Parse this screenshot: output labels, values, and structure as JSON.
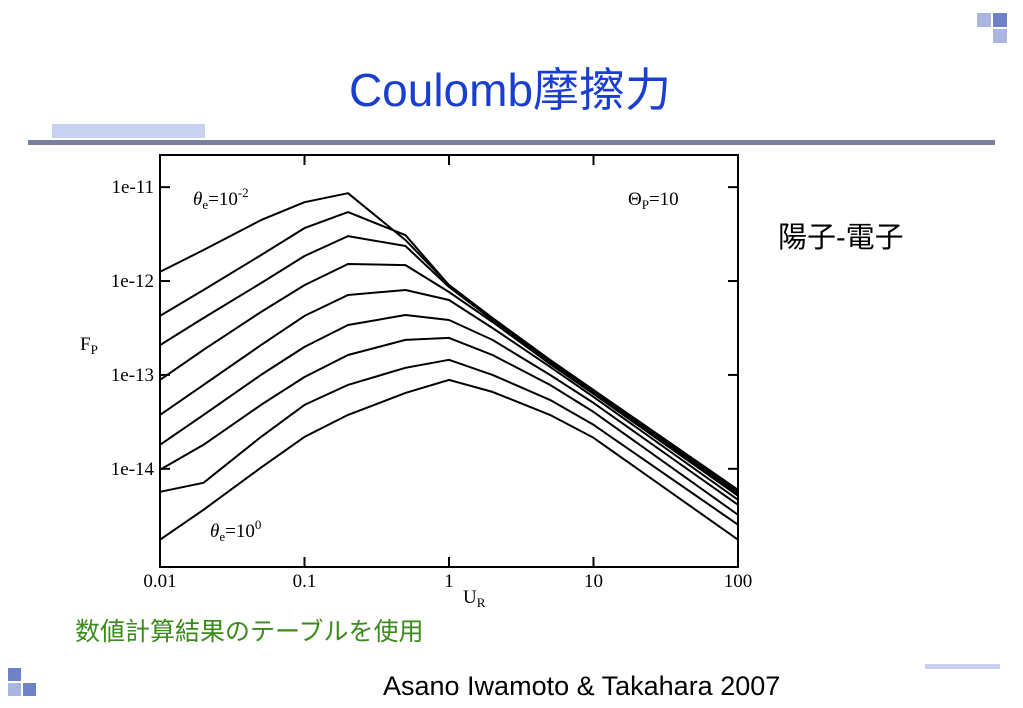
{
  "slide": {
    "title": "Coulomb摩擦力",
    "side_label": "陽子-電子",
    "note": "数値計算結果のテーブルを使用",
    "citation": "Asano Iwamoto & Takahara 2007"
  },
  "chart_data": {
    "type": "line",
    "x_label": {
      "text": "U",
      "sub": "R"
    },
    "y_label": {
      "text": "F",
      "sub": "P"
    },
    "annotations": [
      {
        "symbol": "θ",
        "sub": "e",
        "text": "=10",
        "sup": "-2"
      },
      {
        "symbol": "Θ",
        "sub": "P",
        "text": "=10"
      },
      {
        "symbol": "θ",
        "sub": "e",
        "text": "=10",
        "sup": "0"
      }
    ],
    "log_x": true,
    "log_y": true,
    "xlim": [
      0.01,
      100
    ],
    "ylim": [
      9e-16,
      2.2e-11
    ],
    "xticks": [
      0.01,
      0.1,
      1,
      10,
      100
    ],
    "yticks": [
      {
        "value": 1e-11,
        "label": "1e-11"
      },
      {
        "value": 1e-12,
        "label": "1e-12"
      },
      {
        "value": 1e-13,
        "label": "1e-13"
      },
      {
        "value": 1e-14,
        "label": "1e-14"
      }
    ],
    "x": [
      0.01,
      0.02,
      0.05,
      0.1,
      0.2,
      0.5,
      1,
      2,
      5,
      10,
      100
    ],
    "series": [
      {
        "color": "#000000",
        "values": [
          1.25e-12,
          2.14e-12,
          4.46e-12,
          6.92e-12,
          8.63e-12,
          2.73e-12,
          9.06e-13,
          4.04e-13,
          1.45e-13,
          6.92e-14,
          5.98e-15
        ]
      },
      {
        "color": "#000000",
        "values": [
          4.25e-13,
          8.02e-13,
          1.89e-12,
          3.66e-12,
          5.42e-12,
          3.08e-12,
          9.06e-13,
          4.04e-13,
          1.41e-13,
          6.76e-14,
          5.69e-15
        ]
      },
      {
        "color": "#000000",
        "values": [
          2.08e-13,
          4.04e-13,
          9.5e-13,
          1.85e-12,
          3.01e-12,
          2.36e-12,
          8.63e-13,
          3.85e-13,
          1.37e-13,
          6.59e-14,
          5.42e-15
        ]
      },
      {
        "color": "#000000",
        "values": [
          8.85e-14,
          1.85e-13,
          4.68e-13,
          9.06e-13,
          1.52e-12,
          1.48e-12,
          7.64e-13,
          3.66e-13,
          1.31e-13,
          6.28e-14,
          5.16e-15
        ]
      },
      {
        "color": "#000000",
        "values": [
          3.75e-14,
          7.83e-14,
          2.08e-13,
          4.25e-13,
          7.1e-13,
          8.02e-13,
          6.28e-13,
          3.16e-13,
          1.22e-13,
          5.83e-14,
          4.68e-15
        ]
      },
      {
        "color": "#000000",
        "values": [
          1.8e-14,
          3.75e-14,
          1e-13,
          1.99e-13,
          3.4e-13,
          4.35e-13,
          3.85e-13,
          2.36e-13,
          1e-13,
          5.04e-14,
          4.14e-15
        ]
      },
      {
        "color": "#000000",
        "values": [
          9.76e-15,
          1.8e-14,
          4.8e-14,
          9.5e-14,
          1.63e-13,
          2.36e-13,
          2.48e-13,
          1.63e-13,
          7.83e-14,
          4.04e-14,
          3.24e-15
        ]
      },
      {
        "color": "#000000",
        "values": [
          5.69e-15,
          7.1e-15,
          2.19e-14,
          4.8e-14,
          7.83e-14,
          1.19e-13,
          1.45e-13,
          1e-13,
          5.42e-14,
          2.94e-14,
          2.54e-15
        ]
      },
      {
        "color": "#000000",
        "values": [
          1.76e-15,
          3.66e-15,
          1.03e-14,
          2.19e-14,
          3.75e-14,
          6.44e-14,
          8.85e-14,
          6.59e-14,
          3.75e-14,
          2.14e-14,
          1.76e-15
        ]
      }
    ]
  }
}
